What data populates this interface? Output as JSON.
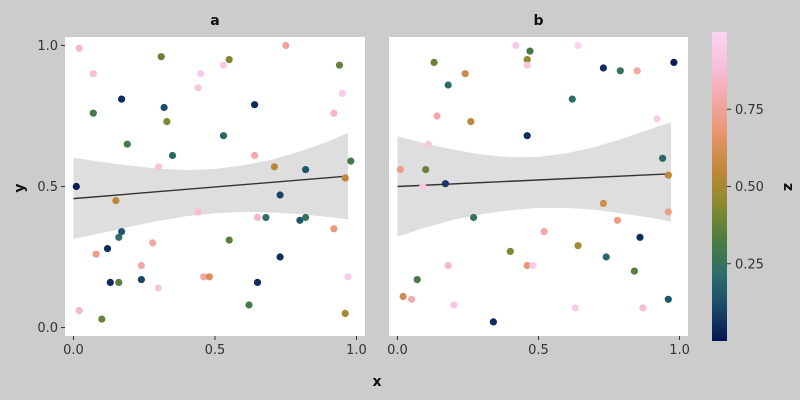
{
  "chart_data": {
    "type": "scatter",
    "xlabel": "x",
    "ylabel": "y",
    "xlim": [
      -0.03,
      1.03
    ],
    "ylim": [
      -0.03,
      1.03
    ],
    "x_ticks": [
      {
        "v": 0,
        "label": "0.0"
      },
      {
        "v": 0.5,
        "label": "0.5"
      },
      {
        "v": 1,
        "label": "1.0"
      }
    ],
    "y_ticks": [
      {
        "v": 0,
        "label": "0.0"
      },
      {
        "v": 0.5,
        "label": "0.5"
      },
      {
        "v": 1,
        "label": "1.0"
      }
    ],
    "color_scale": {
      "title": "z",
      "range": [
        0,
        1
      ],
      "stops": [
        "#051450",
        "#1a4a6a",
        "#2e6e6a",
        "#4f7d3e",
        "#8c8a2e",
        "#c0883a",
        "#e8946a",
        "#f4a7a6",
        "#f9bfdc",
        "#fad5f3"
      ],
      "ticks": [
        {
          "v": 0.25,
          "label": "0.25"
        },
        {
          "v": 0.5,
          "label": "0.50"
        },
        {
          "v": 0.75,
          "label": "0.75"
        }
      ]
    },
    "panels": [
      {
        "title": "a",
        "fit": {
          "x": [
            0.0,
            0.97
          ],
          "y": [
            0.457,
            0.537
          ]
        },
        "band": [
          [
            0.0,
            0.315,
            0.602
          ],
          [
            0.1,
            0.335,
            0.587
          ],
          [
            0.2,
            0.357,
            0.574
          ],
          [
            0.3,
            0.378,
            0.563
          ],
          [
            0.4,
            0.395,
            0.558
          ],
          [
            0.5,
            0.405,
            0.562
          ],
          [
            0.6,
            0.41,
            0.575
          ],
          [
            0.7,
            0.408,
            0.595
          ],
          [
            0.8,
            0.402,
            0.624
          ],
          [
            0.9,
            0.392,
            0.66
          ],
          [
            0.97,
            0.384,
            0.69
          ]
        ],
        "points": [
          {
            "x": 0.01,
            "y": 0.5,
            "z": 0.02
          },
          {
            "x": 0.02,
            "y": 0.99,
            "z": 0.85
          },
          {
            "x": 0.02,
            "y": 0.06,
            "z": 0.85
          },
          {
            "x": 0.07,
            "y": 0.9,
            "z": 0.88
          },
          {
            "x": 0.07,
            "y": 0.76,
            "z": 0.3
          },
          {
            "x": 0.08,
            "y": 0.26,
            "z": 0.72
          },
          {
            "x": 0.1,
            "y": 0.03,
            "z": 0.38
          },
          {
            "x": 0.12,
            "y": 0.28,
            "z": 0.05
          },
          {
            "x": 0.13,
            "y": 0.16,
            "z": 0.05
          },
          {
            "x": 0.15,
            "y": 0.45,
            "z": 0.55
          },
          {
            "x": 0.16,
            "y": 0.32,
            "z": 0.22
          },
          {
            "x": 0.16,
            "y": 0.16,
            "z": 0.35
          },
          {
            "x": 0.17,
            "y": 0.81,
            "z": 0.05
          },
          {
            "x": 0.17,
            "y": 0.34,
            "z": 0.15
          },
          {
            "x": 0.19,
            "y": 0.65,
            "z": 0.3
          },
          {
            "x": 0.24,
            "y": 0.17,
            "z": 0.1
          },
          {
            "x": 0.24,
            "y": 0.22,
            "z": 0.78
          },
          {
            "x": 0.28,
            "y": 0.3,
            "z": 0.78
          },
          {
            "x": 0.3,
            "y": 0.57,
            "z": 0.9
          },
          {
            "x": 0.3,
            "y": 0.14,
            "z": 0.92
          },
          {
            "x": 0.31,
            "y": 0.96,
            "z": 0.38
          },
          {
            "x": 0.32,
            "y": 0.78,
            "z": 0.12
          },
          {
            "x": 0.33,
            "y": 0.73,
            "z": 0.42
          },
          {
            "x": 0.35,
            "y": 0.61,
            "z": 0.2
          },
          {
            "x": 0.44,
            "y": 0.85,
            "z": 0.92
          },
          {
            "x": 0.44,
            "y": 0.41,
            "z": 0.88
          },
          {
            "x": 0.45,
            "y": 0.9,
            "z": 0.95
          },
          {
            "x": 0.46,
            "y": 0.18,
            "z": 0.78
          },
          {
            "x": 0.48,
            "y": 0.18,
            "z": 0.62
          },
          {
            "x": 0.53,
            "y": 0.68,
            "z": 0.2
          },
          {
            "x": 0.53,
            "y": 0.93,
            "z": 0.95
          },
          {
            "x": 0.55,
            "y": 0.95,
            "z": 0.42
          },
          {
            "x": 0.55,
            "y": 0.31,
            "z": 0.35
          },
          {
            "x": 0.62,
            "y": 0.08,
            "z": 0.3
          },
          {
            "x": 0.64,
            "y": 0.61,
            "z": 0.78
          },
          {
            "x": 0.64,
            "y": 0.79,
            "z": 0.05
          },
          {
            "x": 0.65,
            "y": 0.16,
            "z": 0.05
          },
          {
            "x": 0.65,
            "y": 0.39,
            "z": 0.85
          },
          {
            "x": 0.68,
            "y": 0.39,
            "z": 0.22
          },
          {
            "x": 0.71,
            "y": 0.57,
            "z": 0.55
          },
          {
            "x": 0.73,
            "y": 0.47,
            "z": 0.1
          },
          {
            "x": 0.73,
            "y": 0.25,
            "z": 0.05
          },
          {
            "x": 0.75,
            "y": 1.0,
            "z": 0.75
          },
          {
            "x": 0.8,
            "y": 0.38,
            "z": 0.15
          },
          {
            "x": 0.82,
            "y": 0.56,
            "z": 0.15
          },
          {
            "x": 0.82,
            "y": 0.39,
            "z": 0.25
          },
          {
            "x": 0.92,
            "y": 0.76,
            "z": 0.85
          },
          {
            "x": 0.92,
            "y": 0.35,
            "z": 0.7
          },
          {
            "x": 0.94,
            "y": 0.93,
            "z": 0.38
          },
          {
            "x": 0.95,
            "y": 0.83,
            "z": 0.95
          },
          {
            "x": 0.96,
            "y": 0.53,
            "z": 0.55
          },
          {
            "x": 0.96,
            "y": 0.05,
            "z": 0.5
          },
          {
            "x": 0.97,
            "y": 0.18,
            "z": 0.95
          },
          {
            "x": 0.98,
            "y": 0.59,
            "z": 0.3
          }
        ]
      },
      {
        "title": "b",
        "fit": {
          "x": [
            0.0,
            0.97
          ],
          "y": [
            0.5,
            0.545
          ]
        },
        "band": [
          [
            0.0,
            0.322,
            0.678
          ],
          [
            0.1,
            0.355,
            0.652
          ],
          [
            0.2,
            0.382,
            0.63
          ],
          [
            0.3,
            0.402,
            0.613
          ],
          [
            0.4,
            0.416,
            0.604
          ],
          [
            0.5,
            0.424,
            0.605
          ],
          [
            0.6,
            0.424,
            0.618
          ],
          [
            0.7,
            0.417,
            0.64
          ],
          [
            0.8,
            0.404,
            0.67
          ],
          [
            0.9,
            0.389,
            0.705
          ],
          [
            0.97,
            0.375,
            0.728
          ]
        ],
        "points": [
          {
            "x": 0.01,
            "y": 0.56,
            "z": 0.72
          },
          {
            "x": 0.02,
            "y": 0.11,
            "z": 0.6
          },
          {
            "x": 0.05,
            "y": 0.1,
            "z": 0.8
          },
          {
            "x": 0.07,
            "y": 0.17,
            "z": 0.3
          },
          {
            "x": 0.09,
            "y": 0.5,
            "z": 0.92
          },
          {
            "x": 0.1,
            "y": 0.56,
            "z": 0.38
          },
          {
            "x": 0.11,
            "y": 0.65,
            "z": 0.92
          },
          {
            "x": 0.13,
            "y": 0.94,
            "z": 0.38
          },
          {
            "x": 0.14,
            "y": 0.75,
            "z": 0.78
          },
          {
            "x": 0.17,
            "y": 0.51,
            "z": 0.08
          },
          {
            "x": 0.18,
            "y": 0.86,
            "z": 0.22
          },
          {
            "x": 0.18,
            "y": 0.22,
            "z": 0.85
          },
          {
            "x": 0.2,
            "y": 0.08,
            "z": 0.92
          },
          {
            "x": 0.24,
            "y": 0.9,
            "z": 0.58
          },
          {
            "x": 0.26,
            "y": 0.73,
            "z": 0.55
          },
          {
            "x": 0.27,
            "y": 0.39,
            "z": 0.25
          },
          {
            "x": 0.34,
            "y": 0.02,
            "z": 0.05
          },
          {
            "x": 0.4,
            "y": 0.27,
            "z": 0.42
          },
          {
            "x": 0.42,
            "y": 1.0,
            "z": 0.95
          },
          {
            "x": 0.46,
            "y": 0.95,
            "z": 0.45
          },
          {
            "x": 0.46,
            "y": 0.93,
            "z": 0.92
          },
          {
            "x": 0.47,
            "y": 0.98,
            "z": 0.3
          },
          {
            "x": 0.46,
            "y": 0.68,
            "z": 0.05
          },
          {
            "x": 0.46,
            "y": 0.22,
            "z": 0.68
          },
          {
            "x": 0.48,
            "y": 0.22,
            "z": 0.95
          },
          {
            "x": 0.52,
            "y": 0.34,
            "z": 0.78
          },
          {
            "x": 0.62,
            "y": 0.81,
            "z": 0.22
          },
          {
            "x": 0.63,
            "y": 0.07,
            "z": 0.95
          },
          {
            "x": 0.64,
            "y": 0.29,
            "z": 0.5
          },
          {
            "x": 0.64,
            "y": 1.0,
            "z": 0.98
          },
          {
            "x": 0.73,
            "y": 0.92,
            "z": 0.05
          },
          {
            "x": 0.73,
            "y": 0.44,
            "z": 0.6
          },
          {
            "x": 0.74,
            "y": 0.25,
            "z": 0.2
          },
          {
            "x": 0.78,
            "y": 0.38,
            "z": 0.72
          },
          {
            "x": 0.79,
            "y": 0.91,
            "z": 0.25
          },
          {
            "x": 0.84,
            "y": 0.2,
            "z": 0.35
          },
          {
            "x": 0.85,
            "y": 0.91,
            "z": 0.78
          },
          {
            "x": 0.86,
            "y": 0.32,
            "z": 0.05
          },
          {
            "x": 0.87,
            "y": 0.07,
            "z": 0.88
          },
          {
            "x": 0.92,
            "y": 0.74,
            "z": 0.95
          },
          {
            "x": 0.94,
            "y": 0.6,
            "z": 0.2
          },
          {
            "x": 0.96,
            "y": 0.54,
            "z": 0.55
          },
          {
            "x": 0.96,
            "y": 0.41,
            "z": 0.72
          },
          {
            "x": 0.96,
            "y": 0.1,
            "z": 0.15
          },
          {
            "x": 0.98,
            "y": 0.94,
            "z": 0.02
          }
        ]
      }
    ]
  }
}
